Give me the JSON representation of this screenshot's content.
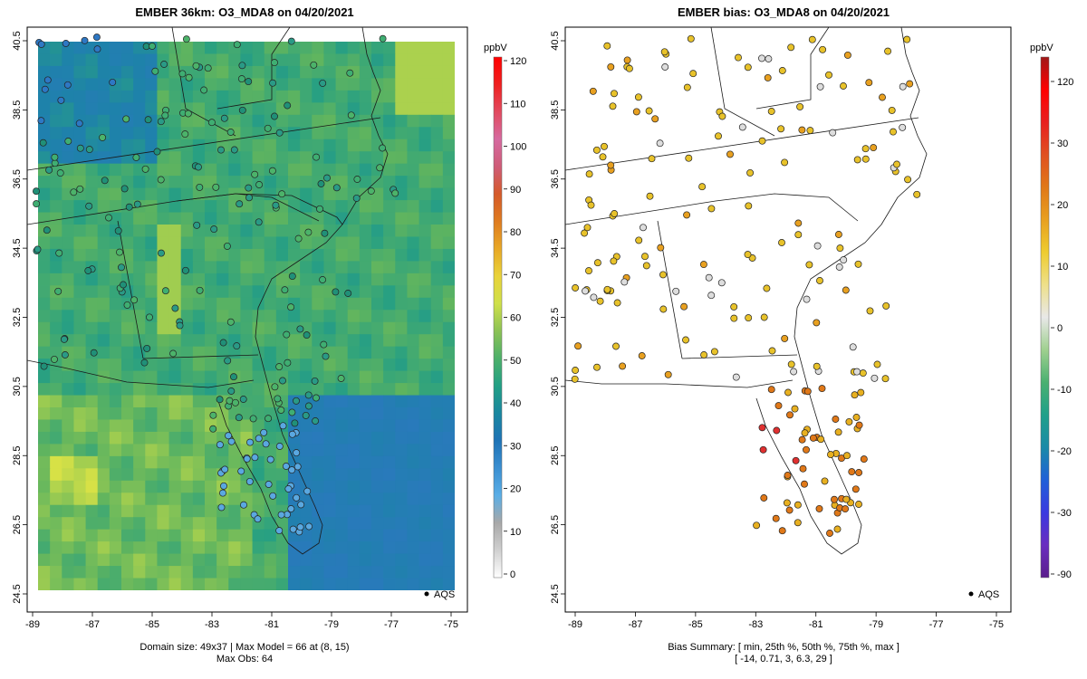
{
  "left_panel": {
    "title": "EMBER 36km: O3_MDA8 on 04/20/2021",
    "footer_line1": "Domain size: 49x37 | Max Model = 66 at (8, 15)",
    "footer_line2": "Max Obs: 64",
    "x_ticks": [
      "-89",
      "-87",
      "-85",
      "-83",
      "-81",
      "-79",
      "-77",
      "-75"
    ],
    "y_ticks": [
      "40.5",
      "38.5",
      "36.5",
      "34.5",
      "32.5",
      "30.5",
      "28.5",
      "26.5",
      "24.5"
    ],
    "legend_marker_label": "AQS",
    "colorbar": {
      "unit": "ppbV",
      "ticks": [
        "120",
        "110",
        "100",
        "90",
        "80",
        "70",
        "60",
        "50",
        "40",
        "30",
        "20",
        "10",
        "0"
      ],
      "colors": [
        "#ffffff",
        "#d0d0d0",
        "#a8a8a8",
        "#5aaee6",
        "#3b8fd1",
        "#1e73b6",
        "#1a87a0",
        "#22a085",
        "#4db06a",
        "#8cc255",
        "#cfe04a",
        "#e9d33a",
        "#e8a826",
        "#df7c20",
        "#d55a2a",
        "#cf5c78",
        "#d66aa0",
        "#e24a5f",
        "#ef2020",
        "#ff0000"
      ]
    }
  },
  "right_panel": {
    "title": "EMBER bias: O3_MDA8 on 04/20/2021",
    "footer_line1": "Bias Summary: [ min, 25th %, 50th %, 75th %, max ]",
    "footer_line2": "[ -14,  0.71,  3,  6.3,  29 ]",
    "x_ticks": [
      "-89",
      "-87",
      "-85",
      "-83",
      "-81",
      "-79",
      "-77",
      "-75"
    ],
    "y_ticks": [
      "40.5",
      "38.5",
      "36.5",
      "34.5",
      "32.5",
      "30.5",
      "28.5",
      "26.5",
      "24.5"
    ],
    "legend_marker_label": "AQS",
    "colorbar": {
      "unit": "ppbV",
      "ticks": [
        "120",
        "30",
        "20",
        "10",
        "0",
        "-10",
        "-20",
        "-30",
        "-90"
      ],
      "colors": [
        "#5b1f8c",
        "#6a2cc0",
        "#3a3ae0",
        "#2060d8",
        "#1a8aa8",
        "#20a08a",
        "#4ab070",
        "#9fd08f",
        "#e8e8e8",
        "#eee08a",
        "#eecc30",
        "#e8a020",
        "#e07818",
        "#e05020",
        "#e82020",
        "#ff0000",
        "#a01818"
      ]
    },
    "station_summary_colors": {
      "mainland_typical": "#e8c22a",
      "florida_high": "#e03030",
      "neutral": "#dddddd"
    }
  }
}
